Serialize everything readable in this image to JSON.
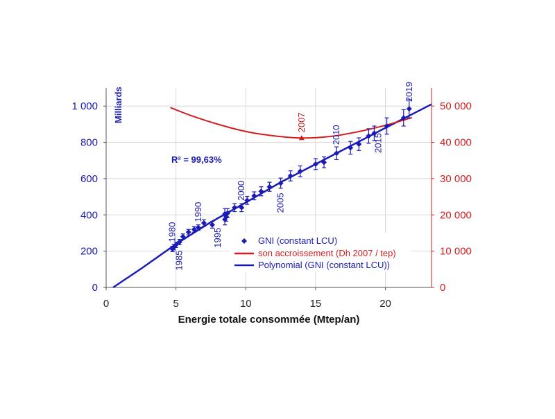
{
  "chart_data": {
    "type": "scatter",
    "xlabel": "Energie totale consommée (Mtep/an)",
    "unit_label": "Milliards",
    "r2_label": "R² = 99,63%",
    "xlim": [
      0,
      23.3
    ],
    "ylim": [
      0,
      1100
    ],
    "y2lim": [
      0,
      55000
    ],
    "x_ticks": [
      "0",
      "5",
      "10",
      "15",
      "20"
    ],
    "y_ticks": [
      "0",
      "200",
      "400",
      "600",
      "800",
      "1 000"
    ],
    "y2_ticks": [
      "0",
      "10 000",
      "20 000",
      "30 000",
      "40 000",
      "50 000"
    ],
    "colors": {
      "gni": "#1a1ab4",
      "increase": "#d21e1e",
      "grid": "#d8d8d8"
    },
    "series": [
      {
        "name": "GNI (constant LCU)",
        "points": [
          {
            "x": 4.75,
            "y": 212,
            "err": 15
          },
          {
            "x": 4.85,
            "y": 222,
            "err": 15
          },
          {
            "x": 5.0,
            "y": 235,
            "err": 15
          },
          {
            "x": 5.25,
            "y": 250,
            "err": 15
          },
          {
            "x": 5.5,
            "y": 280,
            "err": 15
          },
          {
            "x": 5.9,
            "y": 305,
            "err": 15
          },
          {
            "x": 6.3,
            "y": 320,
            "err": 15
          },
          {
            "x": 6.6,
            "y": 330,
            "err": 15
          },
          {
            "x": 7.0,
            "y": 355,
            "err": 18
          },
          {
            "x": 7.6,
            "y": 345,
            "err": 18
          },
          {
            "x": 8.5,
            "y": 375,
            "err": 30
          },
          {
            "x": 8.5,
            "y": 405,
            "err": 30
          },
          {
            "x": 8.6,
            "y": 390,
            "err": 25
          },
          {
            "x": 8.7,
            "y": 410,
            "err": 25
          },
          {
            "x": 9.2,
            "y": 440,
            "err": 22
          },
          {
            "x": 9.7,
            "y": 440,
            "err": 22
          },
          {
            "x": 10.1,
            "y": 480,
            "err": 22
          },
          {
            "x": 10.6,
            "y": 505,
            "err": 22
          },
          {
            "x": 11.1,
            "y": 530,
            "err": 25
          },
          {
            "x": 11.7,
            "y": 555,
            "err": 25
          },
          {
            "x": 12.5,
            "y": 575,
            "err": 28
          },
          {
            "x": 13.2,
            "y": 615,
            "err": 28
          },
          {
            "x": 13.9,
            "y": 640,
            "err": 30
          },
          {
            "x": 15.0,
            "y": 680,
            "err": 30
          },
          {
            "x": 15.6,
            "y": 690,
            "err": 30
          },
          {
            "x": 16.5,
            "y": 740,
            "err": 35
          },
          {
            "x": 17.5,
            "y": 770,
            "err": 35
          },
          {
            "x": 18.1,
            "y": 790,
            "err": 35
          },
          {
            "x": 18.8,
            "y": 835,
            "err": 40
          },
          {
            "x": 19.2,
            "y": 850,
            "err": 40
          },
          {
            "x": 20.1,
            "y": 890,
            "err": 45
          },
          {
            "x": 21.3,
            "y": 935,
            "err": 45
          },
          {
            "x": 21.7,
            "y": 985,
            "err": 50
          }
        ]
      },
      {
        "name": "son accroissement (Dh 2007 / tep)",
        "axis": "right",
        "x": [
          4.6,
          6,
          8,
          10,
          12,
          14,
          16,
          18,
          20,
          21.9
        ],
        "y": [
          49600,
          47500,
          45000,
          43000,
          41800,
          41200,
          41600,
          42900,
          44700,
          46800
        ],
        "marker": {
          "x": 14.0,
          "y": 41200
        }
      },
      {
        "name": "Polynomial (GNI (constant LCU))",
        "x": [
          0.5,
          2.5,
          5,
          7.5,
          10,
          12.5,
          15,
          17.5,
          20,
          23.3
        ],
        "y": [
          0,
          103,
          239,
          360,
          468,
          580,
          680,
          780,
          880,
          1010
        ]
      }
    ],
    "annotations": [
      {
        "text": "1980",
        "x": 4.75,
        "y": 212,
        "dx": 0,
        "dy": -10
      },
      {
        "text": "1985",
        "x": 5.25,
        "y": 250,
        "dx": 0,
        "dy": 12
      },
      {
        "text": "1990",
        "x": 6.6,
        "y": 330,
        "dx": 0,
        "dy": -8
      },
      {
        "text": "1995",
        "x": 8.5,
        "y": 375,
        "dx": -10,
        "dy": 12
      },
      {
        "text": "2000",
        "x": 9.7,
        "y": 440,
        "dx": 0,
        "dy": -10
      },
      {
        "text": "2005",
        "x": 12.5,
        "y": 575,
        "dx": 0,
        "dy": 14
      },
      {
        "text": "2010",
        "x": 16.5,
        "y": 740,
        "dx": 0,
        "dy": -12
      },
      {
        "text": "2015",
        "x": 20.1,
        "y": 890,
        "dx": -12,
        "dy": 10
      },
      {
        "text": "2019",
        "x": 21.7,
        "y": 985,
        "dx": 0,
        "dy": -10
      }
    ],
    "increase_label": {
      "text": "2007"
    },
    "legend": {
      "placement": "bottom-right",
      "items": [
        "GNI (constant LCU)",
        "son accroissement (Dh 2007 / tep)",
        "Polynomial (GNI (constant LCU))"
      ]
    }
  }
}
